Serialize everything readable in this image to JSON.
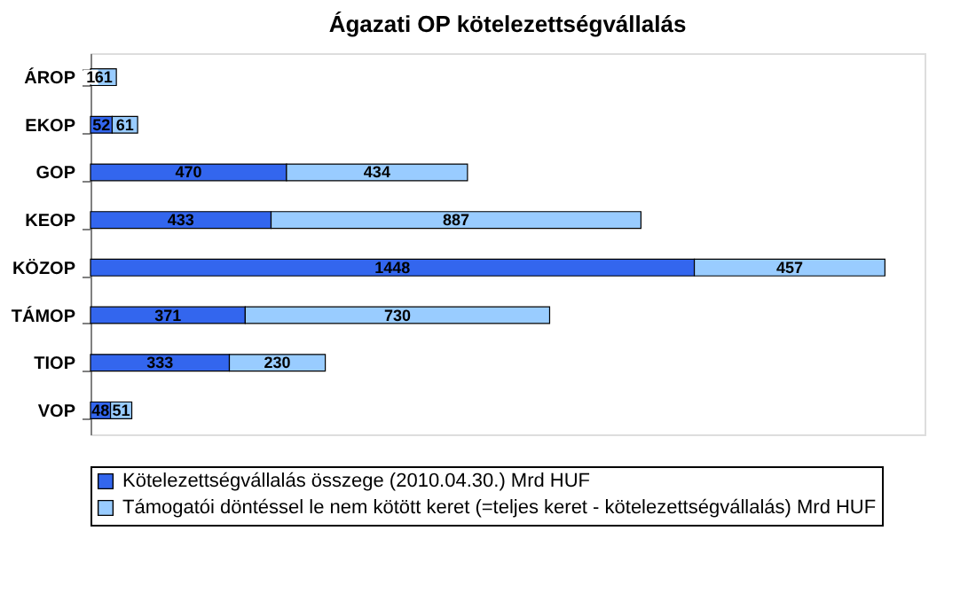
{
  "chart_data": {
    "type": "bar",
    "orientation": "horizontal",
    "stacked": true,
    "title": "Ágazati OP kötelezettségvállalás",
    "categories": [
      "ÁROP",
      "EKOP",
      "GOP",
      "KEOP",
      "KÖZOP",
      "TÁMOP",
      "TIOP",
      "VOP"
    ],
    "series": [
      {
        "name": "Kötelezettségvállalás összege (2010.04.30.)  Mrd HUF",
        "color": "#3366ee",
        "values": [
          1,
          52,
          470,
          433,
          1448,
          371,
          333,
          48
        ]
      },
      {
        "name": "Támogatói döntéssel le nem kötött keret (=teljes keret - kötelezettségvállalás) Mrd HUF",
        "color": "#99ccff",
        "values": [
          61,
          61,
          434,
          887,
          457,
          730,
          230,
          51
        ]
      }
    ],
    "data_labels": true,
    "legend": "bottom",
    "grid": false,
    "tick_labels": "y"
  }
}
